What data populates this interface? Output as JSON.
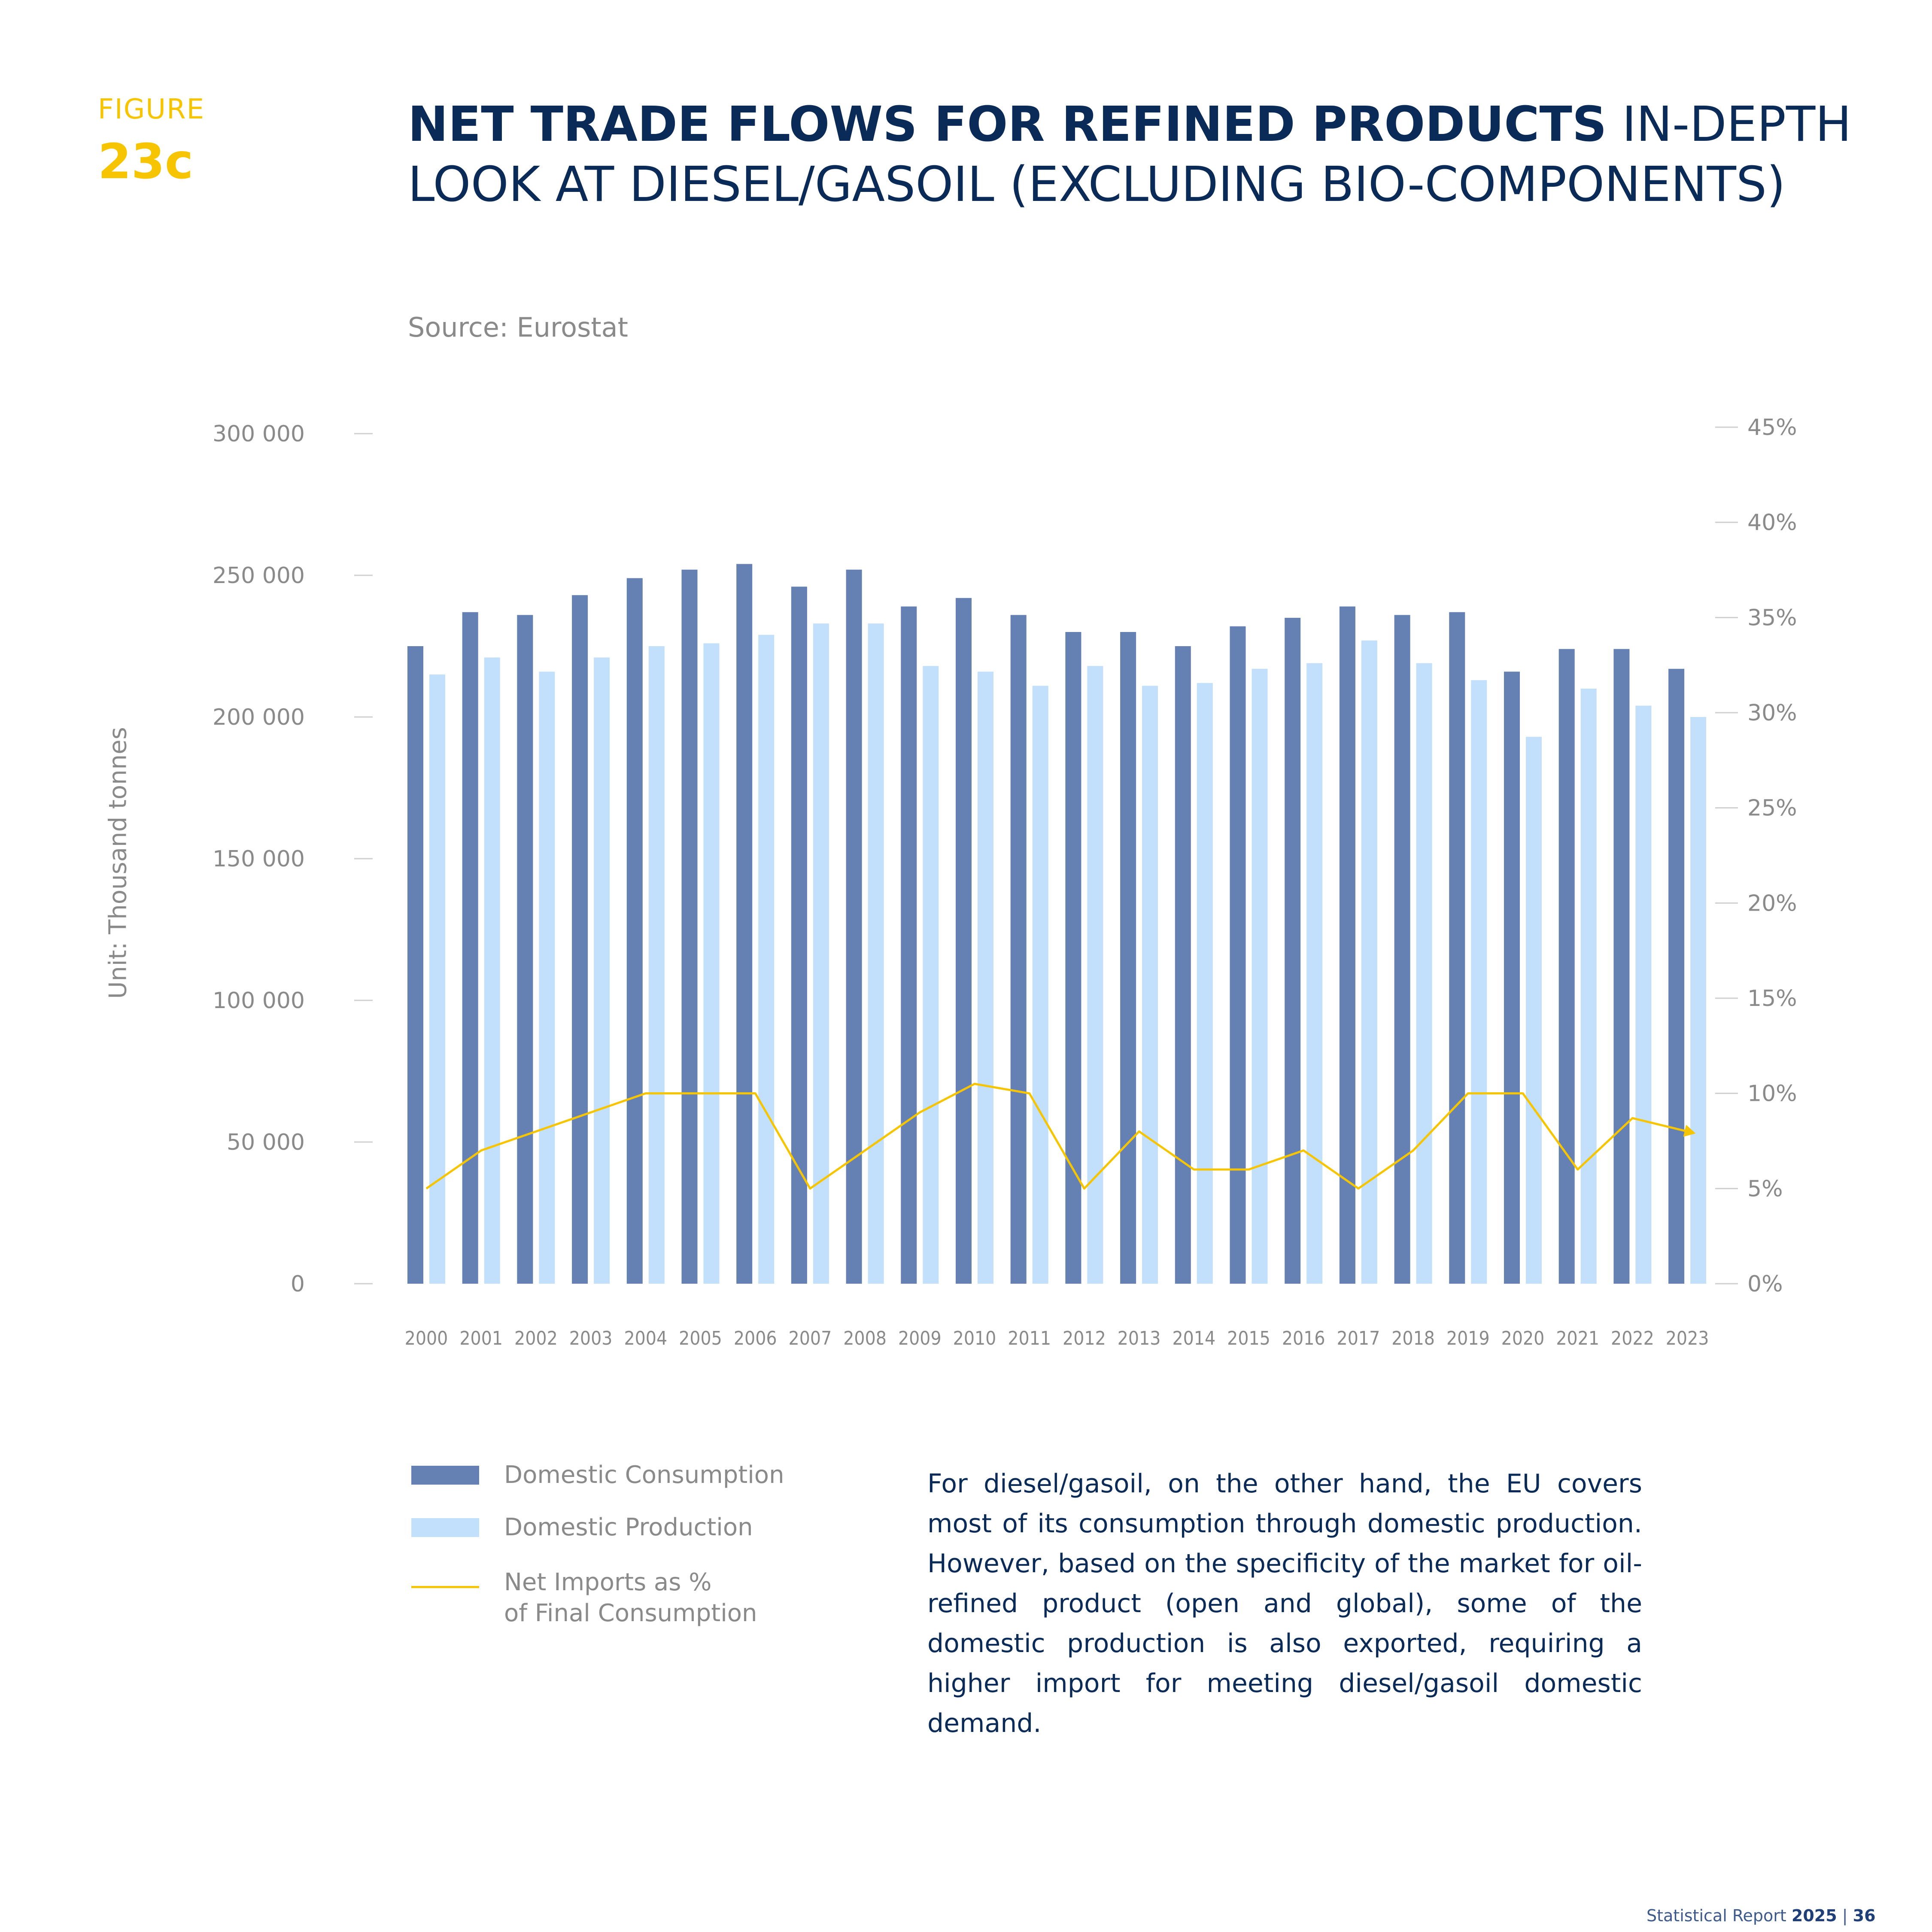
{
  "figure": {
    "label": "FIGURE",
    "number": "23c"
  },
  "title": {
    "bold": "NET TRADE FLOWS FOR REFINED PRODUCTS",
    "rest": " IN-DEPTH LOOK AT DIESEL/GASOIL (EXCLUDING BIO-COMPONENTS)"
  },
  "source": "Source: Eurostat",
  "unit_label": "Unit: Thousand tonnes",
  "chart_data": {
    "type": "bar",
    "categories": [
      "2000",
      "2001",
      "2002",
      "2003",
      "2004",
      "2005",
      "2006",
      "2007",
      "2008",
      "2009",
      "2010",
      "2011",
      "2012",
      "2013",
      "2014",
      "2015",
      "2016",
      "2017",
      "2018",
      "2019",
      "2020",
      "2021",
      "2022",
      "2023"
    ],
    "series": [
      {
        "name": "Domestic Consumption",
        "type": "bar",
        "axis": "left",
        "values": [
          225000,
          237000,
          236000,
          243000,
          249000,
          252000,
          254000,
          246000,
          252000,
          239000,
          242000,
          236000,
          230000,
          230000,
          225000,
          232000,
          235000,
          239000,
          236000,
          237000,
          216000,
          224000,
          224000,
          217000
        ]
      },
      {
        "name": "Domestic Production",
        "type": "bar",
        "axis": "left",
        "values": [
          215000,
          221000,
          216000,
          221000,
          225000,
          226000,
          229000,
          233000,
          233000,
          218000,
          216000,
          211000,
          218000,
          211000,
          212000,
          217000,
          219000,
          227000,
          219000,
          213000,
          193000,
          210000,
          204000,
          200000
        ]
      },
      {
        "name": "Net Imports as % of Final Consumption",
        "type": "line",
        "axis": "right",
        "values": [
          5,
          7,
          8,
          9,
          10,
          10,
          10,
          5,
          7,
          9,
          10.5,
          10,
          5,
          8,
          6,
          6,
          7,
          5,
          7,
          10,
          10,
          6,
          8.7,
          8
        ]
      }
    ],
    "ylim_left": [
      0,
      300000
    ],
    "ylim_right": [
      0,
      45
    ],
    "yticks_left": [
      "300 000",
      "250 000",
      "200 000",
      "150 000",
      "100 000",
      "50 000",
      "0"
    ],
    "yticks_right": [
      "45%",
      "40%",
      "35%",
      "30%",
      "25%",
      "20%",
      "15%",
      "10%",
      "5%",
      "0%"
    ],
    "colors": {
      "Domestic Consumption": "#6580b3",
      "Domestic Production": "#c2dffb",
      "Net Imports as % of Final Consumption": "#f6c500"
    },
    "legend_position": "bottom-left",
    "grid": false
  },
  "legend": {
    "consumption": "Domestic Consumption",
    "production": "Domestic Production",
    "imports_line1": "Net Imports as %",
    "imports_line2": "of Final Consumption"
  },
  "paragraph": "For diesel/gasoil, on the other hand, the EU covers most of its consumption through domestic production. However, based on the specificity of the market for oil-refined product (open and global), some of the domestic production is also exported, requiring a higher import for meeting diesel/gasoil domestic demand.",
  "footer": {
    "report": "Statistical Report ",
    "year": "2025",
    "sep": " | ",
    "page": "36"
  }
}
